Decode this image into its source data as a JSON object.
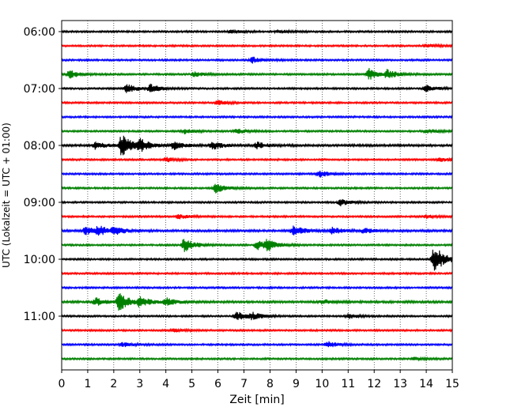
{
  "chart_data": {
    "type": "line",
    "title": "",
    "xlabel": "Zeit  [min]",
    "ylabel": "UTC (Lokalzeit = UTC + 01:00)",
    "xlim": [
      0,
      15
    ],
    "xticks": [
      "0",
      "1",
      "2",
      "3",
      "4",
      "5",
      "6",
      "7",
      "8",
      "9",
      "10",
      "11",
      "12",
      "13",
      "14",
      "15"
    ],
    "yticks": [
      "06:00",
      "07:00",
      "08:00",
      "09:00",
      "10:00",
      "11:00"
    ],
    "grid": "vertical-dotted",
    "colors": [
      "#000000",
      "#ff0000",
      "#0000ff",
      "#008000"
    ],
    "traces": [
      {
        "start": "06:00",
        "color": "#000000",
        "noise": 1.0,
        "events": [
          {
            "t": 6.5,
            "a": 2
          },
          {
            "t": 8.3,
            "a": 2
          }
        ]
      },
      {
        "start": "06:15",
        "color": "#ff0000",
        "noise": 1.0,
        "events": [
          {
            "t": 14.0,
            "a": 2
          }
        ]
      },
      {
        "start": "06:30",
        "color": "#0000ff",
        "noise": 1.0,
        "events": [
          {
            "t": 7.3,
            "a": 4
          }
        ]
      },
      {
        "start": "06:45",
        "color": "#008000",
        "noise": 1.0,
        "events": [
          {
            "t": 0.3,
            "a": 5
          },
          {
            "t": 5.1,
            "a": 3
          },
          {
            "t": 11.8,
            "a": 7
          },
          {
            "t": 12.5,
            "a": 5
          }
        ]
      },
      {
        "start": "07:00",
        "color": "#000000",
        "noise": 1.0,
        "events": [
          {
            "t": 2.5,
            "a": 6
          },
          {
            "t": 3.4,
            "a": 5
          },
          {
            "t": 14.0,
            "a": 4
          }
        ]
      },
      {
        "start": "07:15",
        "color": "#ff0000",
        "noise": 1.0,
        "events": [
          {
            "t": 6.0,
            "a": 3
          }
        ]
      },
      {
        "start": "07:30",
        "color": "#0000ff",
        "noise": 1.0,
        "events": []
      },
      {
        "start": "07:45",
        "color": "#008000",
        "noise": 1.0,
        "events": [
          {
            "t": 4.7,
            "a": 3
          },
          {
            "t": 6.7,
            "a": 3
          },
          {
            "t": 14.0,
            "a": 3
          }
        ]
      },
      {
        "start": "08:00",
        "color": "#000000",
        "noise": 1.2,
        "events": [
          {
            "t": 1.3,
            "a": 5
          },
          {
            "t": 2.3,
            "a": 14
          },
          {
            "t": 3.0,
            "a": 7
          },
          {
            "t": 4.3,
            "a": 5
          },
          {
            "t": 5.8,
            "a": 5
          },
          {
            "t": 7.5,
            "a": 4
          }
        ]
      },
      {
        "start": "08:15",
        "color": "#ff0000",
        "noise": 1.0,
        "events": [
          {
            "t": 4.0,
            "a": 3
          },
          {
            "t": 14.5,
            "a": 3
          }
        ]
      },
      {
        "start": "08:30",
        "color": "#0000ff",
        "noise": 1.0,
        "events": [
          {
            "t": 9.9,
            "a": 4
          }
        ]
      },
      {
        "start": "08:45",
        "color": "#008000",
        "noise": 1.0,
        "events": [
          {
            "t": 5.9,
            "a": 6
          }
        ]
      },
      {
        "start": "09:00",
        "color": "#000000",
        "noise": 1.0,
        "events": [
          {
            "t": 10.7,
            "a": 4
          }
        ]
      },
      {
        "start": "09:15",
        "color": "#ff0000",
        "noise": 1.0,
        "events": [
          {
            "t": 4.5,
            "a": 3
          },
          {
            "t": 14.0,
            "a": 2
          }
        ]
      },
      {
        "start": "09:30",
        "color": "#0000ff",
        "noise": 1.2,
        "events": [
          {
            "t": 0.9,
            "a": 5
          },
          {
            "t": 1.4,
            "a": 6
          },
          {
            "t": 2.0,
            "a": 5
          },
          {
            "t": 8.9,
            "a": 7
          },
          {
            "t": 10.4,
            "a": 4
          },
          {
            "t": 11.6,
            "a": 3
          }
        ]
      },
      {
        "start": "09:45",
        "color": "#008000",
        "noise": 1.0,
        "events": [
          {
            "t": 4.7,
            "a": 9
          },
          {
            "t": 7.5,
            "a": 6
          },
          {
            "t": 7.9,
            "a": 6
          }
        ]
      },
      {
        "start": "10:00",
        "color": "#000000",
        "noise": 1.0,
        "events": [
          {
            "t": 14.3,
            "a": 18
          }
        ]
      },
      {
        "start": "10:15",
        "color": "#ff0000",
        "noise": 1.0,
        "events": []
      },
      {
        "start": "10:30",
        "color": "#0000ff",
        "noise": 1.0,
        "events": []
      },
      {
        "start": "10:45",
        "color": "#008000",
        "noise": 1.2,
        "events": [
          {
            "t": 1.3,
            "a": 5
          },
          {
            "t": 2.2,
            "a": 12
          },
          {
            "t": 3.0,
            "a": 6
          },
          {
            "t": 4.0,
            "a": 5
          },
          {
            "t": 10.0,
            "a": 3
          }
        ]
      },
      {
        "start": "11:00",
        "color": "#000000",
        "noise": 1.0,
        "events": [
          {
            "t": 6.7,
            "a": 6
          },
          {
            "t": 7.3,
            "a": 4
          },
          {
            "t": 11.0,
            "a": 3
          }
        ]
      },
      {
        "start": "11:15",
        "color": "#ff0000",
        "noise": 1.0,
        "events": [
          {
            "t": 4.3,
            "a": 2
          }
        ]
      },
      {
        "start": "11:30",
        "color": "#0000ff",
        "noise": 1.0,
        "events": [
          {
            "t": 2.3,
            "a": 3
          },
          {
            "t": 10.2,
            "a": 4
          }
        ]
      },
      {
        "start": "11:45",
        "color": "#008000",
        "noise": 1.0,
        "events": [
          {
            "t": 13.5,
            "a": 2
          }
        ]
      }
    ]
  }
}
